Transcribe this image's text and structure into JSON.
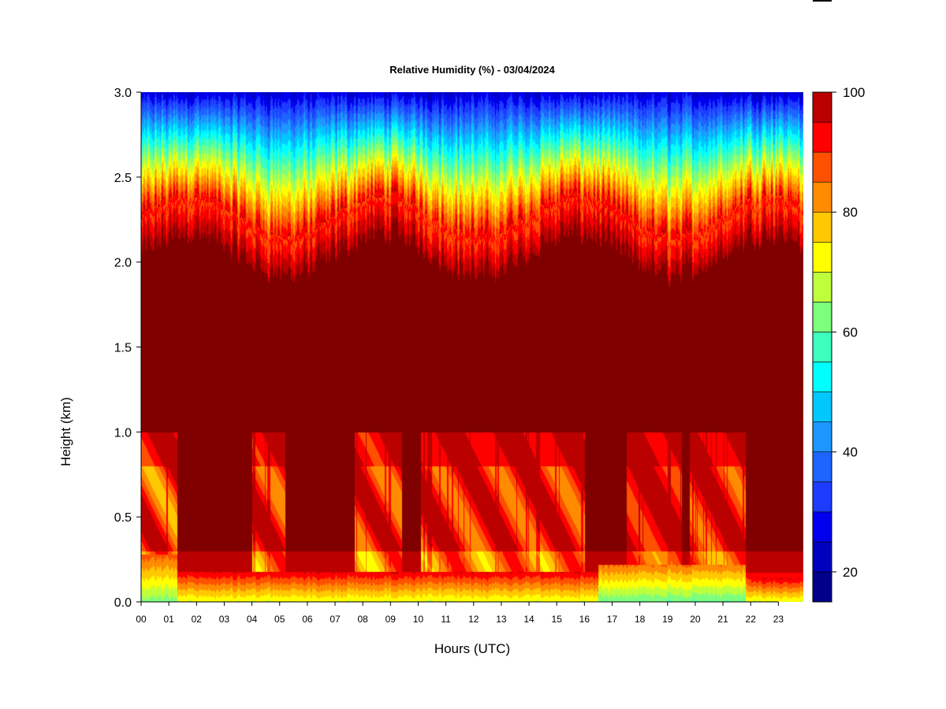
{
  "chart_data": {
    "type": "heatmap",
    "title": "Relative Humidity (%) - 03/04/2024",
    "xlabel": "Hours (UTC)",
    "ylabel": "Height (km)",
    "x_ticks": [
      "00",
      "01",
      "02",
      "03",
      "04",
      "05",
      "06",
      "07",
      "08",
      "09",
      "10",
      "11",
      "12",
      "13",
      "14",
      "15",
      "16",
      "17",
      "18",
      "19",
      "20",
      "21",
      "22",
      "23"
    ],
    "xlim": [
      0,
      23.9
    ],
    "y_ticks": [
      "0.0",
      "0.5",
      "1.0",
      "1.5",
      "2.0",
      "2.5",
      "3.0"
    ],
    "ylim": [
      0,
      3.0
    ],
    "colorbar": {
      "levels": [
        15,
        20,
        25,
        30,
        35,
        40,
        45,
        50,
        55,
        60,
        65,
        70,
        75,
        80,
        85,
        90,
        95,
        100
      ],
      "tick_labels": [
        "20",
        "40",
        "60",
        "80",
        "100"
      ],
      "tick_values": [
        20,
        40,
        60,
        80,
        100
      ],
      "colors": [
        "#00008B",
        "#0000BF",
        "#0000EE",
        "#1E3CFF",
        "#1E64FF",
        "#1E96FF",
        "#00C8FF",
        "#00FFFF",
        "#3CFFBE",
        "#7DFF7D",
        "#BEFF3C",
        "#FFFF00",
        "#FFC800",
        "#FF8C00",
        "#FF5000",
        "#FF0000",
        "#BB0000",
        "#800000"
      ]
    },
    "rh_profile_description_values": {
      "surface_layer_rh_range": [
        55,
        75
      ],
      "mid_layer_rh": 100,
      "top_rh_range": [
        20,
        40
      ]
    }
  }
}
